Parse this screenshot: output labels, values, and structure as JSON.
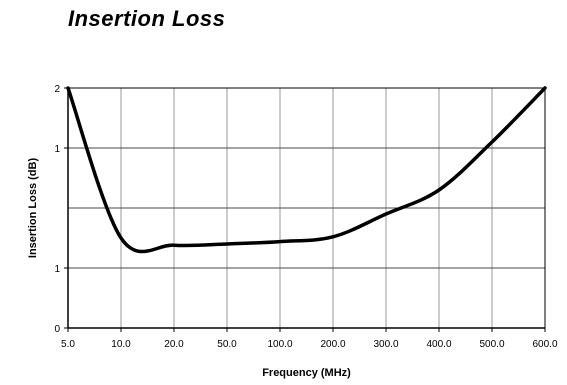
{
  "chart_data": {
    "type": "line",
    "title": "Insertion Loss",
    "xlabel": "Frequency (MHz)",
    "ylabel": "Insertion Loss (dB)",
    "x_tick_labels": [
      "5.0",
      "10.0",
      "20.0",
      "50.0",
      "100.0",
      "200.0",
      "300.0",
      "400.0",
      "500.0",
      "600.0"
    ],
    "y_tick_labels": [
      "0",
      "1",
      "1",
      "2"
    ],
    "grid": true,
    "series": [
      {
        "x": [
          "5.0",
          "10.0",
          "20.0",
          "50.0",
          "100.0",
          "200.0",
          "300.0",
          "400.0",
          "500.0",
          "600.0"
        ],
        "y": [
          2.0,
          0.75,
          0.69,
          0.7,
          0.72,
          0.76,
          0.95,
          1.15,
          1.55,
          2.0
        ]
      }
    ]
  }
}
